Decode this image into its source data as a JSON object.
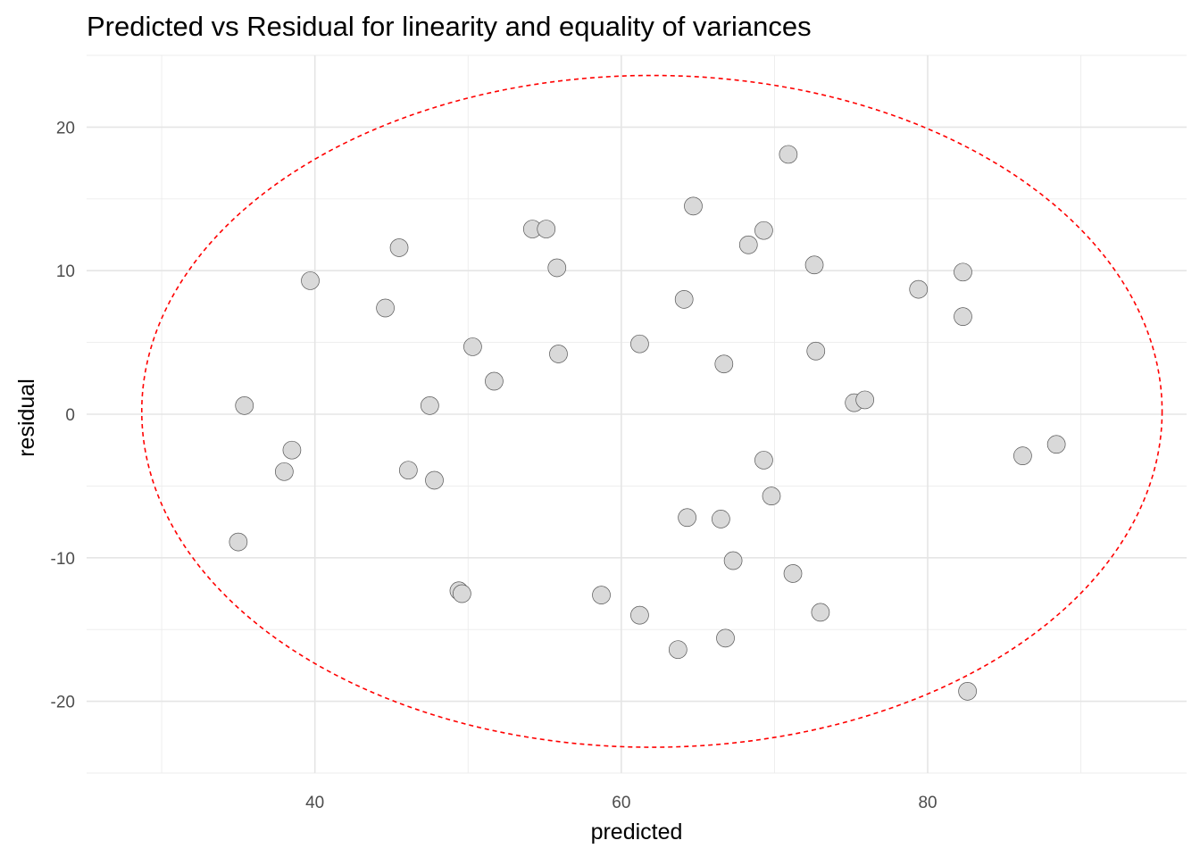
{
  "chart_data": {
    "type": "scatter",
    "title": "Predicted vs Residual for linearity and equality of variances",
    "xlabel": "predicted",
    "ylabel": "residual",
    "xlim": [
      25.1,
      96.9
    ],
    "ylim": [
      -25,
      25
    ],
    "x_ticks": [
      40,
      60,
      80
    ],
    "y_ticks": [
      -20,
      -10,
      0,
      10,
      20
    ],
    "x_tick_labels": [
      "40",
      "60",
      "80"
    ],
    "y_tick_labels": [
      "-20",
      "-10",
      "0",
      "10",
      "20"
    ],
    "grid": true,
    "legend": "none",
    "point_fill": "#d9d9d9",
    "point_stroke": "#555555",
    "ellipse_color": "#ff0000",
    "ellipse": {
      "center_x": 62.0,
      "center_y": 0.2,
      "radius_x": 33.3,
      "radius_y": 23.4,
      "style": "dashed"
    },
    "points": [
      {
        "x": 35.0,
        "y": -8.9
      },
      {
        "x": 35.4,
        "y": 0.6
      },
      {
        "x": 38.0,
        "y": -4.0
      },
      {
        "x": 38.5,
        "y": -2.5
      },
      {
        "x": 39.7,
        "y": 9.3
      },
      {
        "x": 44.6,
        "y": 7.4
      },
      {
        "x": 45.5,
        "y": 11.6
      },
      {
        "x": 46.1,
        "y": -3.9
      },
      {
        "x": 47.5,
        "y": 0.6
      },
      {
        "x": 47.8,
        "y": -4.6
      },
      {
        "x": 49.4,
        "y": -12.3
      },
      {
        "x": 49.6,
        "y": -12.5
      },
      {
        "x": 50.3,
        "y": 4.7
      },
      {
        "x": 51.7,
        "y": 2.3
      },
      {
        "x": 54.2,
        "y": 12.9
      },
      {
        "x": 55.1,
        "y": 12.9
      },
      {
        "x": 55.8,
        "y": 10.2
      },
      {
        "x": 55.9,
        "y": 4.2
      },
      {
        "x": 58.7,
        "y": -12.6
      },
      {
        "x": 61.2,
        "y": 4.9
      },
      {
        "x": 61.2,
        "y": -14.0
      },
      {
        "x": 63.7,
        "y": -16.4
      },
      {
        "x": 64.1,
        "y": 8.0
      },
      {
        "x": 64.3,
        "y": -7.2
      },
      {
        "x": 64.7,
        "y": 14.5
      },
      {
        "x": 66.5,
        "y": -7.3
      },
      {
        "x": 66.8,
        "y": -15.6
      },
      {
        "x": 66.7,
        "y": 3.5
      },
      {
        "x": 67.3,
        "y": -10.2
      },
      {
        "x": 68.3,
        "y": 11.8
      },
      {
        "x": 69.3,
        "y": 12.8
      },
      {
        "x": 69.3,
        "y": -3.2
      },
      {
        "x": 69.8,
        "y": -5.7
      },
      {
        "x": 70.9,
        "y": 18.1
      },
      {
        "x": 71.2,
        "y": -11.1
      },
      {
        "x": 72.6,
        "y": 10.4
      },
      {
        "x": 72.7,
        "y": 4.4
      },
      {
        "x": 73.0,
        "y": -13.8
      },
      {
        "x": 75.2,
        "y": 0.8
      },
      {
        "x": 75.9,
        "y": 1.0
      },
      {
        "x": 79.4,
        "y": 8.7
      },
      {
        "x": 82.3,
        "y": 9.9
      },
      {
        "x": 82.3,
        "y": 6.8
      },
      {
        "x": 82.6,
        "y": -19.3
      },
      {
        "x": 86.2,
        "y": -2.9
      },
      {
        "x": 88.4,
        "y": -2.1
      }
    ]
  }
}
